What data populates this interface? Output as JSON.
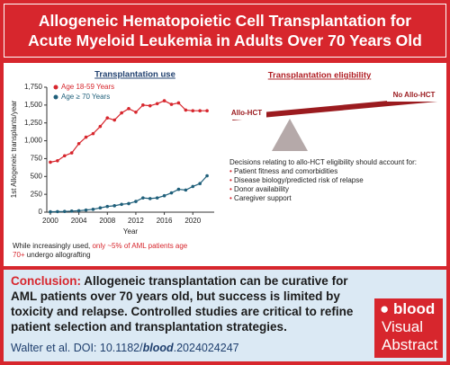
{
  "header": {
    "title": "Allogeneic Hematopoietic Cell Transplantation for Acute Myeloid Leukemia in Adults Over 70 Years Old"
  },
  "chart_data": {
    "type": "line",
    "title": "Transplantation use",
    "x_label": "Year",
    "y_label": "1st Allogeneic transplants/year",
    "x": [
      2000,
      2001,
      2002,
      2003,
      2004,
      2005,
      2006,
      2007,
      2008,
      2009,
      2010,
      2011,
      2012,
      2013,
      2014,
      2015,
      2016,
      2017,
      2018,
      2019,
      2020,
      2021,
      2022
    ],
    "series": [
      {
        "name": "Age 18-59 Years",
        "color": "#d7262d",
        "values": [
          700,
          720,
          790,
          830,
          960,
          1050,
          1100,
          1200,
          1320,
          1290,
          1390,
          1450,
          1400,
          1500,
          1490,
          1520,
          1560,
          1510,
          1530,
          1430,
          1420,
          1420,
          1420
        ]
      },
      {
        "name": "Age ≥ 70 Years",
        "color": "#1f5f7a",
        "values": [
          5,
          8,
          10,
          15,
          20,
          30,
          40,
          60,
          80,
          90,
          110,
          120,
          150,
          200,
          190,
          200,
          230,
          270,
          320,
          310,
          360,
          400,
          510
        ]
      }
    ],
    "xlim": [
      1999.5,
      2023
    ],
    "xticks": [
      2000,
      2004,
      2008,
      2012,
      2016,
      2020
    ],
    "ylim": [
      0,
      1750
    ],
    "yticks": [
      0,
      {
        "value": 250,
        "label": "250"
      },
      500,
      750,
      {
        "value": 1000,
        "label": "1,000"
      },
      {
        "value": 1250,
        "label": "1,250"
      },
      {
        "value": 1500,
        "label": "1,500"
      },
      {
        "value": 1750,
        "label": "1,750"
      }
    ],
    "caption": [
      "While increasingly used, ",
      "only ~5% of AML patients age 70+",
      " undergo allografting"
    ]
  },
  "eligibility": {
    "title": "Transplantation eligibility",
    "left_label": "Allo-HCT",
    "right_label": "No Allo-HCT",
    "intro": "Decisions relating to allo-HCT eligibility should account for:",
    "bullets": [
      "Patient fitness and comorbidities",
      "Disease biology/predicted risk of relapse",
      "Donor availability",
      "Caregiver support"
    ]
  },
  "footer": {
    "conclusion_label": "Conclusion:",
    "conclusion": "Allogeneic transplantation can be curative for AML patients over 70 years old, but success is limited by toxicity and relapse. Controlled studies are critical to refine patient selection and transplantation strategies.",
    "citation": [
      "Walter et al. DOI: 10.1182/",
      "blood",
      ".2024024247"
    ],
    "logo": [
      "blood",
      "Visual",
      "Abstract"
    ]
  }
}
